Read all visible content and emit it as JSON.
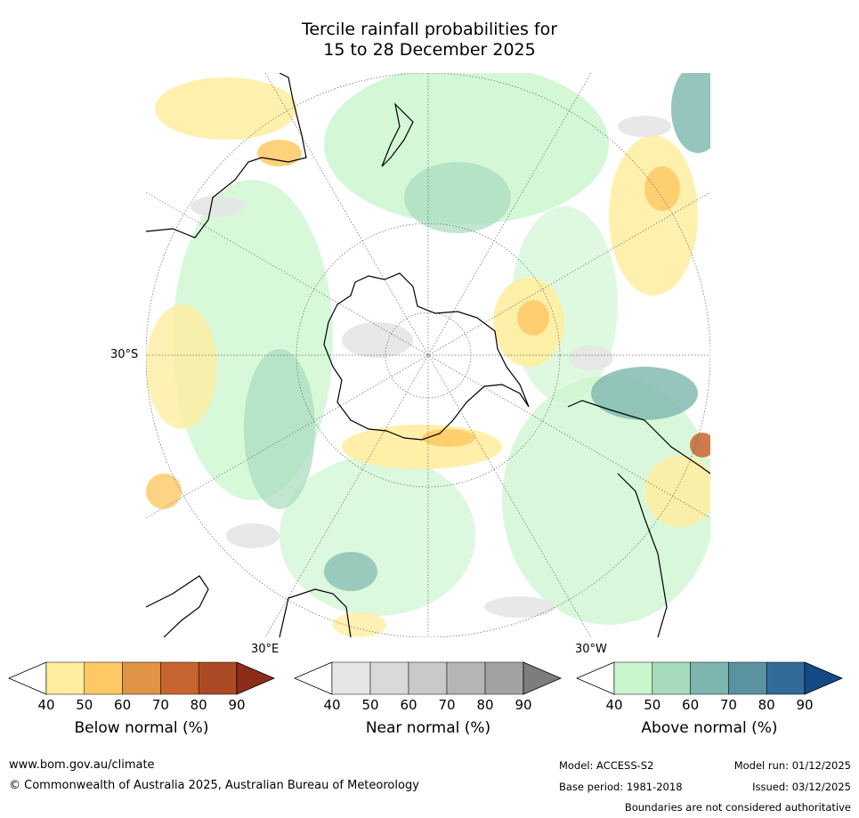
{
  "title": {
    "line1": "Tercile rainfall probabilities for",
    "line2": "15 to 28 December 2025"
  },
  "map": {
    "projection": "south-polar-stereographic",
    "lat_label": "30°S",
    "lon_label_east": "30°E",
    "lon_label_west": "30°W"
  },
  "colorbars": [
    {
      "label": "Below normal (%)",
      "ticks": [
        "40",
        "50",
        "60",
        "70",
        "80",
        "90"
      ],
      "low_color": "#ffffff",
      "colors": [
        "#ffeda0",
        "#fec965",
        "#e09446",
        "#c8642f",
        "#ad4a26"
      ],
      "high_color": "#8c2d1a"
    },
    {
      "label": "Near normal (%)",
      "ticks": [
        "40",
        "50",
        "60",
        "70",
        "80",
        "90"
      ],
      "low_color": "#ffffff",
      "colors": [
        "#e6e6e6",
        "#d9d9d9",
        "#c9c9c9",
        "#b5b5b5",
        "#a2a2a2"
      ],
      "high_color": "#7d7d7d"
    },
    {
      "label": "Above normal (%)",
      "ticks": [
        "40",
        "50",
        "60",
        "70",
        "80",
        "90"
      ],
      "low_color": "#ffffff",
      "colors": [
        "#c9f5cc",
        "#a6dbbd",
        "#7cb6ae",
        "#5a93a0",
        "#336a98"
      ],
      "high_color": "#134a86"
    }
  ],
  "footer": {
    "website": "www.bom.gov.au/climate",
    "copyright": "© Commonwealth of Australia 2025, Australian Bureau of Meteorology",
    "model": "Model: ACCESS-S2",
    "base_period": "Base period: 1981-2018",
    "model_run": "Model run: 01/12/2025",
    "issued": "Issued: 03/12/2025",
    "disclaimer": "Boundaries are not considered authoritative"
  }
}
